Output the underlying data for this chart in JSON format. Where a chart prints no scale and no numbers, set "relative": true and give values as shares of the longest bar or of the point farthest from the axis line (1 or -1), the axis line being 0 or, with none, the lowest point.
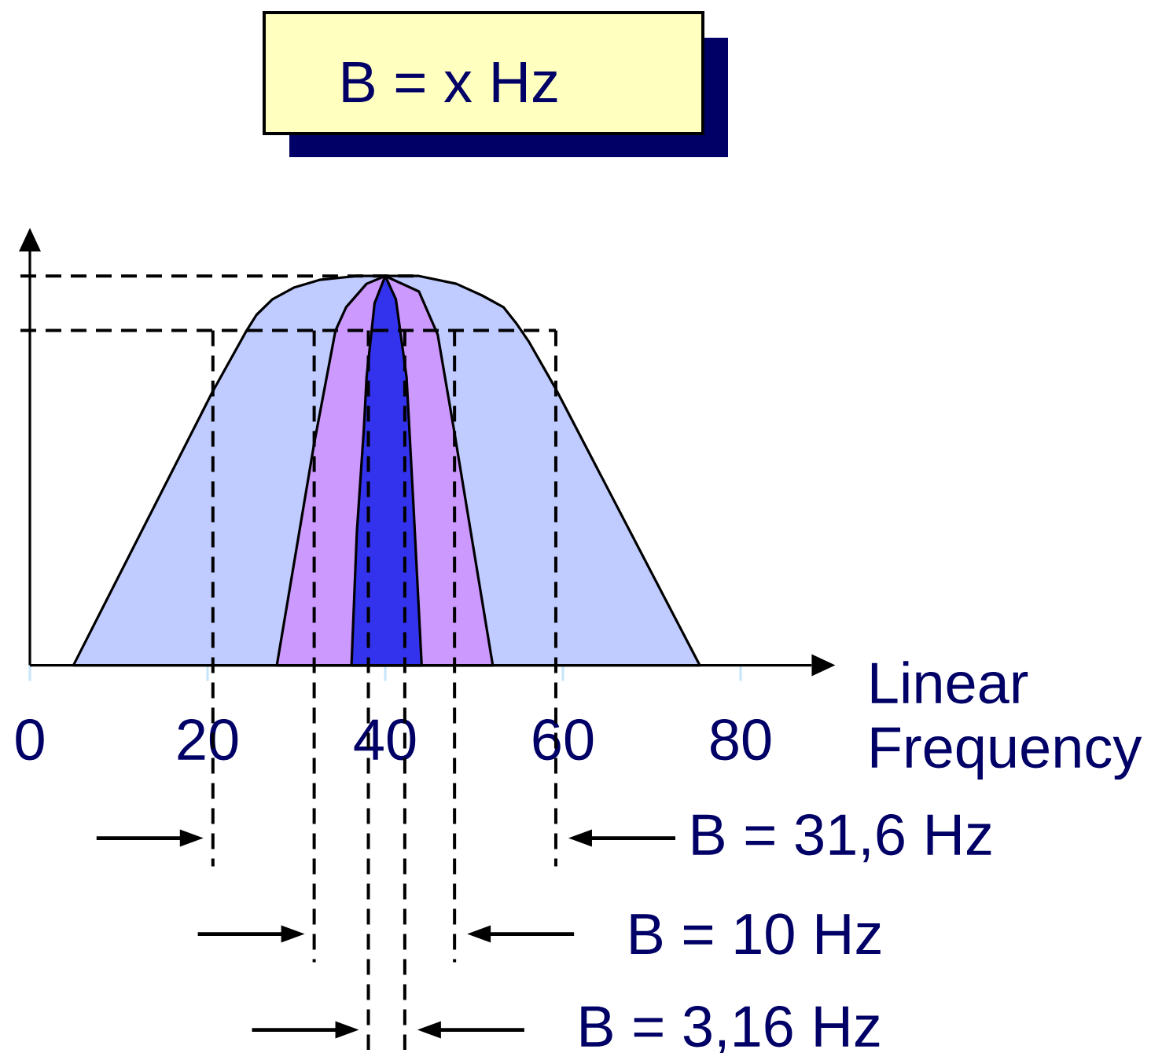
{
  "chart_data": {
    "type": "area",
    "title": "B = x Hz",
    "xlabel": "Linear Frequency",
    "relative": true,
    "xlim": [
      0,
      88
    ],
    "xticks": [
      0,
      20,
      40,
      60,
      80
    ],
    "series": [
      {
        "color": "#c0ccff",
        "x": [
          4.9,
          20.5,
          24.4,
          25.5,
          27.3,
          29.7,
          32.6,
          36.8,
          40.0,
          43.8,
          48.0,
          50.9,
          53.3,
          54.7,
          56.2,
          59.2,
          75.4
        ],
        "values": [
          0,
          0.7,
          0.86,
          0.9,
          0.94,
          0.97,
          0.99,
          1.0,
          1.0,
          1.0,
          0.98,
          0.95,
          0.92,
          0.88,
          0.83,
          0.71,
          0
        ]
      },
      {
        "color": "#cc99ff",
        "x": [
          27.8,
          32.0,
          34.4,
          35.6,
          37.9,
          40.0,
          43.8,
          45.9,
          47.7,
          52.1
        ],
        "values": [
          0,
          0.57,
          0.86,
          0.92,
          0.98,
          1.0,
          0.96,
          0.85,
          0.61,
          0
        ]
      },
      {
        "color": "#3333ee",
        "x": [
          36.2,
          36.8,
          37.6,
          37.9,
          38.8,
          40.0,
          41.2,
          42.4,
          43.2,
          44.1
        ],
        "values": [
          0,
          0.34,
          0.61,
          0.74,
          0.93,
          1.0,
          0.94,
          0.74,
          0.4,
          0
        ]
      }
    ],
    "ref_lines": [
      {
        "axis": "y",
        "value": 1.0,
        "line_style": "dashed"
      },
      {
        "axis": "y",
        "value": 0.86,
        "line_style": "dashed"
      },
      {
        "axis": "x",
        "value": 20.6,
        "line_style": "dashed"
      },
      {
        "axis": "x",
        "value": 59.2,
        "line_style": "dashed"
      },
      {
        "axis": "x",
        "value": 32.0,
        "line_style": "dashed"
      },
      {
        "axis": "x",
        "value": 47.8,
        "line_style": "dashed"
      },
      {
        "axis": "x",
        "value": 38.1,
        "line_style": "dashed"
      },
      {
        "axis": "x",
        "value": 42.2,
        "line_style": "dashed"
      }
    ],
    "annotations": [
      "B = 31,6 Hz",
      "B = 10 Hz",
      "B = 3,16 Hz"
    ]
  }
}
